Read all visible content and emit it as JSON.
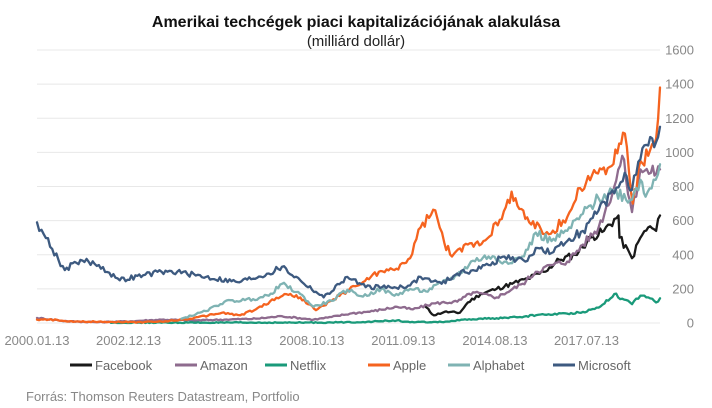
{
  "chart_data": {
    "type": "line",
    "title": "Amerikai techcégek piaci kapitalizációjának alakulása",
    "subtitle": "(milliárd dollár)",
    "xlabel": "",
    "ylabel": "",
    "x_ticks": [
      "2000.01.13",
      "2002.12.13",
      "2005.11.13",
      "2008.10.13",
      "2011.09.13",
      "2014.08.13",
      "2017.07.13"
    ],
    "y_ticks": [
      0,
      200,
      400,
      600,
      800,
      1000,
      1200,
      1400,
      1600
    ],
    "ylim": [
      0,
      1600
    ],
    "xlim": [
      "2000.01.13",
      "2019.11.15"
    ],
    "y_axis_side": "right",
    "grid": "horizontal",
    "legend_position": "bottom",
    "source": "Forrás: Thomson Reuters Datastream, Portfolio",
    "series": [
      {
        "name": "Facebook",
        "color": "#1a1a1a",
        "points": [
          [
            "2012.05.18",
            100
          ],
          [
            "2012.09.01",
            45
          ],
          [
            "2013.01.01",
            65
          ],
          [
            "2013.07.01",
            60
          ],
          [
            "2013.10.01",
            120
          ],
          [
            "2014.03.01",
            170
          ],
          [
            "2014.09.01",
            200
          ],
          [
            "2015.03.01",
            230
          ],
          [
            "2015.09.01",
            260
          ],
          [
            "2016.03.01",
            300
          ],
          [
            "2016.09.01",
            370
          ],
          [
            "2017.03.01",
            400
          ],
          [
            "2017.09.01",
            500
          ],
          [
            "2018.02.01",
            540
          ],
          [
            "2018.07.20",
            630
          ],
          [
            "2018.08.01",
            500
          ],
          [
            "2018.12.24",
            380
          ],
          [
            "2019.04.01",
            500
          ],
          [
            "2019.07.01",
            560
          ],
          [
            "2019.10.01",
            540
          ],
          [
            "2019.11.15",
            630
          ]
        ]
      },
      {
        "name": "Amazon",
        "color": "#8e6b8e",
        "points": [
          [
            "2000.01.13",
            30
          ],
          [
            "2001.01.01",
            10
          ],
          [
            "2002.01.01",
            5
          ],
          [
            "2003.01.01",
            10
          ],
          [
            "2004.01.01",
            20
          ],
          [
            "2005.01.01",
            15
          ],
          [
            "2006.01.01",
            20
          ],
          [
            "2007.01.01",
            25
          ],
          [
            "2007.11.01",
            40
          ],
          [
            "2008.11.01",
            20
          ],
          [
            "2009.06.01",
            35
          ],
          [
            "2010.01.01",
            55
          ],
          [
            "2010.10.01",
            70
          ],
          [
            "2011.07.01",
            95
          ],
          [
            "2012.01.01",
            80
          ],
          [
            "2012.09.01",
            115
          ],
          [
            "2013.06.01",
            125
          ],
          [
            "2013.12.01",
            180
          ],
          [
            "2014.09.01",
            150
          ],
          [
            "2015.07.01",
            230
          ],
          [
            "2015.12.01",
            300
          ],
          [
            "2016.06.01",
            340
          ],
          [
            "2016.12.01",
            360
          ],
          [
            "2017.06.01",
            460
          ],
          [
            "2017.12.01",
            560
          ],
          [
            "2018.06.01",
            800
          ],
          [
            "2018.09.01",
            980
          ],
          [
            "2018.12.24",
            650
          ],
          [
            "2019.04.01",
            900
          ],
          [
            "2019.08.01",
            880
          ],
          [
            "2019.11.15",
            900
          ]
        ]
      },
      {
        "name": "Netflix",
        "color": "#1a9a7a",
        "points": [
          [
            "2002.05.23",
            1
          ],
          [
            "2004.01.01",
            2
          ],
          [
            "2006.01.01",
            2
          ],
          [
            "2008.01.01",
            2
          ],
          [
            "2009.06.01",
            3
          ],
          [
            "2010.06.01",
            6
          ],
          [
            "2011.07.01",
            15
          ],
          [
            "2011.12.01",
            4
          ],
          [
            "2012.12.01",
            6
          ],
          [
            "2013.12.01",
            22
          ],
          [
            "2014.09.01",
            28
          ],
          [
            "2015.06.01",
            35
          ],
          [
            "2016.01.01",
            48
          ],
          [
            "2016.12.01",
            55
          ],
          [
            "2017.06.01",
            65
          ],
          [
            "2017.12.01",
            90
          ],
          [
            "2018.06.01",
            170
          ],
          [
            "2018.12.24",
            110
          ],
          [
            "2019.04.01",
            160
          ],
          [
            "2019.07.01",
            150
          ],
          [
            "2019.10.01",
            120
          ],
          [
            "2019.11.15",
            145
          ]
        ]
      },
      {
        "name": "Apple",
        "color": "#f5631f",
        "points": [
          [
            "2000.01.13",
            20
          ],
          [
            "2000.09.01",
            18
          ],
          [
            "2001.01.01",
            8
          ],
          [
            "2002.01.01",
            8
          ],
          [
            "2003.04.01",
            5
          ],
          [
            "2004.01.01",
            8
          ],
          [
            "2004.12.01",
            25
          ],
          [
            "2005.12.01",
            60
          ],
          [
            "2006.07.01",
            45
          ],
          [
            "2007.01.01",
            80
          ],
          [
            "2007.12.01",
            170
          ],
          [
            "2008.06.01",
            150
          ],
          [
            "2008.12.01",
            75
          ],
          [
            "2009.06.01",
            130
          ],
          [
            "2009.12.01",
            190
          ],
          [
            "2010.06.01",
            240
          ],
          [
            "2010.12.01",
            300
          ],
          [
            "2011.06.01",
            310
          ],
          [
            "2011.12.01",
            380
          ],
          [
            "2012.04.01",
            560
          ],
          [
            "2012.09.19",
            660
          ],
          [
            "2013.01.01",
            470
          ],
          [
            "2013.04.01",
            390
          ],
          [
            "2013.10.01",
            460
          ],
          [
            "2014.04.01",
            480
          ],
          [
            "2014.11.01",
            610
          ],
          [
            "2015.02.23",
            770
          ],
          [
            "2015.08.01",
            610
          ],
          [
            "2016.05.01",
            520
          ],
          [
            "2016.12.01",
            620
          ],
          [
            "2017.05.01",
            790
          ],
          [
            "2017.11.01",
            880
          ],
          [
            "2018.05.01",
            920
          ],
          [
            "2018.10.03",
            1110
          ],
          [
            "2019.01.03",
            700
          ],
          [
            "2019.04.01",
            950
          ],
          [
            "2019.07.01",
            980
          ],
          [
            "2019.10.01",
            1080
          ],
          [
            "2019.11.15",
            1380
          ]
        ]
      },
      {
        "name": "Alphabet",
        "color": "#7fb3b3",
        "points": [
          [
            "2004.08.19",
            25
          ],
          [
            "2005.06.01",
            70
          ],
          [
            "2006.01.01",
            125
          ],
          [
            "2006.12.01",
            140
          ],
          [
            "2007.06.01",
            160
          ],
          [
            "2007.11.01",
            230
          ],
          [
            "2008.06.01",
            170
          ],
          [
            "2008.11.01",
            95
          ],
          [
            "2009.06.01",
            130
          ],
          [
            "2009.12.01",
            195
          ],
          [
            "2010.06.01",
            155
          ],
          [
            "2011.01.01",
            200
          ],
          [
            "2011.06.01",
            160
          ],
          [
            "2011.12.01",
            200
          ],
          [
            "2012.06.01",
            185
          ],
          [
            "2012.12.01",
            235
          ],
          [
            "2013.06.01",
            280
          ],
          [
            "2013.12.01",
            365
          ],
          [
            "2014.06.01",
            390
          ],
          [
            "2014.12.01",
            360
          ],
          [
            "2015.06.01",
            380
          ],
          [
            "2015.09.01",
            430
          ],
          [
            "2015.12.01",
            530
          ],
          [
            "2016.06.01",
            480
          ],
          [
            "2016.12.01",
            540
          ],
          [
            "2017.06.01",
            640
          ],
          [
            "2017.12.01",
            730
          ],
          [
            "2018.06.01",
            780
          ],
          [
            "2018.12.01",
            720
          ],
          [
            "2019.04.01",
            840
          ],
          [
            "2019.06.01",
            740
          ],
          [
            "2019.09.01",
            840
          ],
          [
            "2019.11.15",
            930
          ]
        ]
      },
      {
        "name": "Microsoft",
        "color": "#3d5a80",
        "points": [
          [
            "2000.01.13",
            590
          ],
          [
            "2000.04.01",
            520
          ],
          [
            "2000.12.01",
            310
          ],
          [
            "2001.06.01",
            370
          ],
          [
            "2002.01.01",
            340
          ],
          [
            "2002.09.01",
            250
          ],
          [
            "2003.06.01",
            280
          ],
          [
            "2004.01.01",
            300
          ],
          [
            "2004.07.01",
            300
          ],
          [
            "2005.06.01",
            270
          ],
          [
            "2006.06.01",
            240
          ],
          [
            "2007.06.01",
            290
          ],
          [
            "2007.11.01",
            330
          ],
          [
            "2008.06.01",
            250
          ],
          [
            "2009.03.01",
            150
          ],
          [
            "2009.12.01",
            270
          ],
          [
            "2010.07.01",
            210
          ],
          [
            "2011.06.01",
            210
          ],
          [
            "2011.12.01",
            220
          ],
          [
            "2012.04.01",
            270
          ],
          [
            "2012.12.01",
            230
          ],
          [
            "2013.06.01",
            290
          ],
          [
            "2013.12.01",
            310
          ],
          [
            "2014.06.01",
            340
          ],
          [
            "2014.12.01",
            390
          ],
          [
            "2015.08.01",
            360
          ],
          [
            "2015.12.01",
            440
          ],
          [
            "2016.06.01",
            410
          ],
          [
            "2016.12.01",
            480
          ],
          [
            "2017.06.01",
            540
          ],
          [
            "2017.12.01",
            660
          ],
          [
            "2018.06.01",
            760
          ],
          [
            "2018.10.01",
            880
          ],
          [
            "2018.12.24",
            780
          ],
          [
            "2019.04.01",
            960
          ],
          [
            "2019.07.01",
            1040
          ],
          [
            "2019.10.01",
            1060
          ],
          [
            "2019.11.15",
            1150
          ]
        ]
      }
    ]
  }
}
